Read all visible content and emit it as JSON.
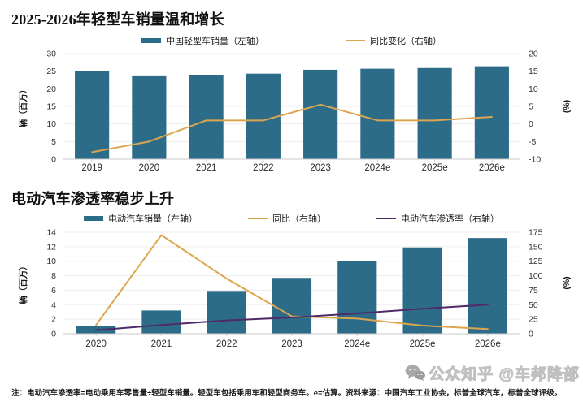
{
  "page": {
    "footnote": "注：电动汽车渗透率=电动乘用车零售量÷轻型车销量。轻型车包括乘用车和轻型商务车。e=估算。资料来源：中国汽车工业协会，标普全球汽车，标普全球评级。",
    "watermark": {
      "icon": "wechat-icon",
      "text": "公众知乎 @车邦降部"
    }
  },
  "colors": {
    "bar_teal": "#2d6c89",
    "line_orange": "#dba64f",
    "line_purple": "#4f2a68",
    "grid": "#ededed",
    "axis_line": "#c9c9c9",
    "tick_text": "#333333"
  },
  "chart_data": [
    {
      "type": "combo",
      "title": "2025-2026年轻型车销量温和增长",
      "categories": [
        "2019",
        "2020",
        "2021",
        "2022",
        "2023",
        "2024e",
        "2025e",
        "2026e"
      ],
      "series": [
        {
          "name": "中国轻型车销量（左轴）",
          "type": "bar",
          "axis": "left",
          "color": "#2d6c89",
          "values": [
            25.0,
            23.8,
            24.0,
            24.3,
            25.4,
            25.7,
            25.9,
            26.4
          ]
        },
        {
          "name": "同比变化（右轴）",
          "type": "line",
          "axis": "right",
          "color": "#dba64f",
          "values": [
            -8,
            -5,
            1,
            1,
            5.5,
            1,
            1,
            2
          ]
        }
      ],
      "left_axis": {
        "label": "辆（百万）",
        "min": 0,
        "max": 30,
        "ticks": [
          0,
          5,
          10,
          15,
          20,
          25,
          30
        ]
      },
      "right_axis": {
        "label": "(%)",
        "min": -10,
        "max": 20,
        "ticks": [
          -10,
          -5,
          0,
          5,
          10,
          15,
          20
        ]
      },
      "grid": true,
      "legend_position": "top"
    },
    {
      "type": "combo",
      "title": "电动汽车渗透率稳步上升",
      "categories": [
        "2020",
        "2021",
        "2022",
        "2023",
        "2024e",
        "2025e",
        "2026e"
      ],
      "series": [
        {
          "name": "电动汽车销量（左轴）",
          "type": "bar",
          "axis": "left",
          "color": "#2d6c89",
          "values": [
            1.1,
            3.2,
            5.9,
            7.7,
            10.0,
            11.9,
            13.2
          ]
        },
        {
          "name": "同比（右轴）",
          "type": "line",
          "axis": "right",
          "color": "#dba64f",
          "values": [
            15,
            170,
            95,
            30,
            26,
            14,
            8
          ]
        },
        {
          "name": "电动汽车渗透率（右轴）",
          "type": "line",
          "axis": "right",
          "color": "#4f2a68",
          "values": [
            6,
            15,
            23,
            28,
            35,
            43,
            50
          ]
        }
      ],
      "left_axis": {
        "label": "辆（百万）",
        "min": 0,
        "max": 14,
        "ticks": [
          0,
          2,
          4,
          6,
          8,
          10,
          12,
          14
        ]
      },
      "right_axis": {
        "label": "(%)",
        "min": 0,
        "max": 175,
        "ticks": [
          0,
          25,
          50,
          75,
          100,
          125,
          150,
          175
        ]
      },
      "grid": true,
      "legend_position": "top"
    }
  ]
}
